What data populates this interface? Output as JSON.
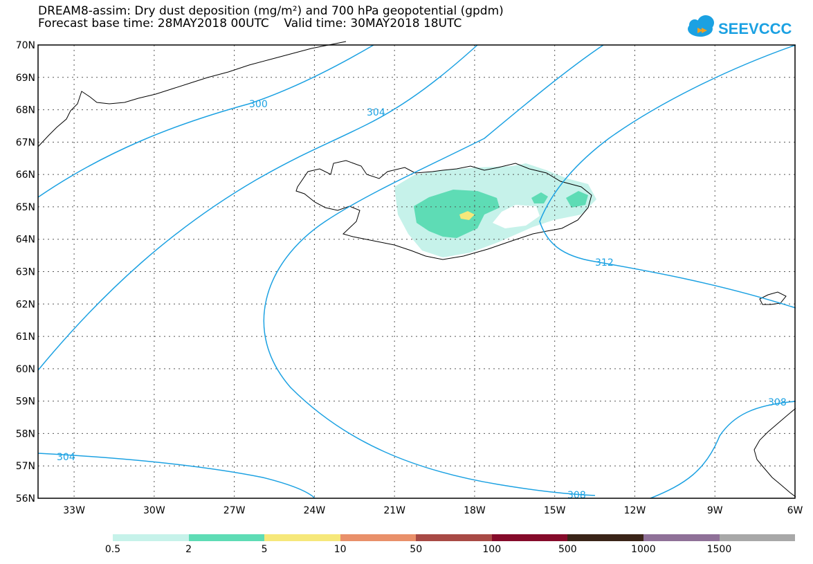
{
  "header": {
    "title_line1": "DREAM8-assim: Dry dust deposition (mg/m²) and 700 hPa geopotential (gpdm)",
    "title_line2": "Forecast base time: 28MAY2018 00UTC    Valid time: 30MAY2018 18UTC",
    "logo_text": "SEEVCCC"
  },
  "map": {
    "lat_labels": [
      "70N",
      "69N",
      "68N",
      "67N",
      "66N",
      "65N",
      "64N",
      "63N",
      "62N",
      "61N",
      "60N",
      "59N",
      "58N",
      "57N",
      "56N"
    ],
    "lon_labels": [
      "33W",
      "30W",
      "27W",
      "24W",
      "21W",
      "18W",
      "15W",
      "12W",
      "9W",
      "6W"
    ],
    "contour_labels": [
      "300",
      "304",
      "304",
      "308",
      "308",
      "312"
    ]
  },
  "legend": {
    "labels": [
      "0.5",
      "2",
      "5",
      "10",
      "50",
      "100",
      "500",
      "1000",
      "1500"
    ],
    "colors": [
      "#c6f2ea",
      "#5edcb5",
      "#f6e87a",
      "#e9906a",
      "#a84a45",
      "#850b2a",
      "#3a2418",
      "#8f7198",
      "#a8a8a8"
    ]
  },
  "colors": {
    "contour": "#1ba1e2",
    "grid": "#555555"
  }
}
